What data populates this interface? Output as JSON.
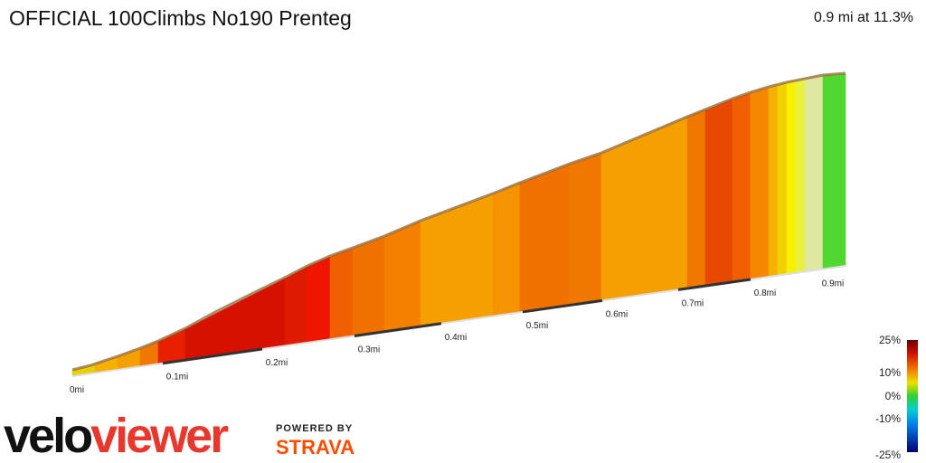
{
  "header": {
    "title": "OFFICIAL 100Climbs No190 Prenteg",
    "summary": "0.9 mi at 11.3%"
  },
  "distance_labels": [
    "0mi",
    "0.1mi",
    "0.2mi",
    "0.3mi",
    "0.4mi",
    "0.5mi",
    "0.6mi",
    "0.7mi",
    "0.8mi",
    "0.9mi"
  ],
  "gradient_legend": {
    "labels": [
      "25%",
      "10%",
      "0%",
      "-10%",
      "-25%"
    ]
  },
  "logo": {
    "velo": "velo",
    "viewer": "viewer"
  },
  "powered": {
    "label": "POWERED BY",
    "brand": "STRAVA"
  }
}
